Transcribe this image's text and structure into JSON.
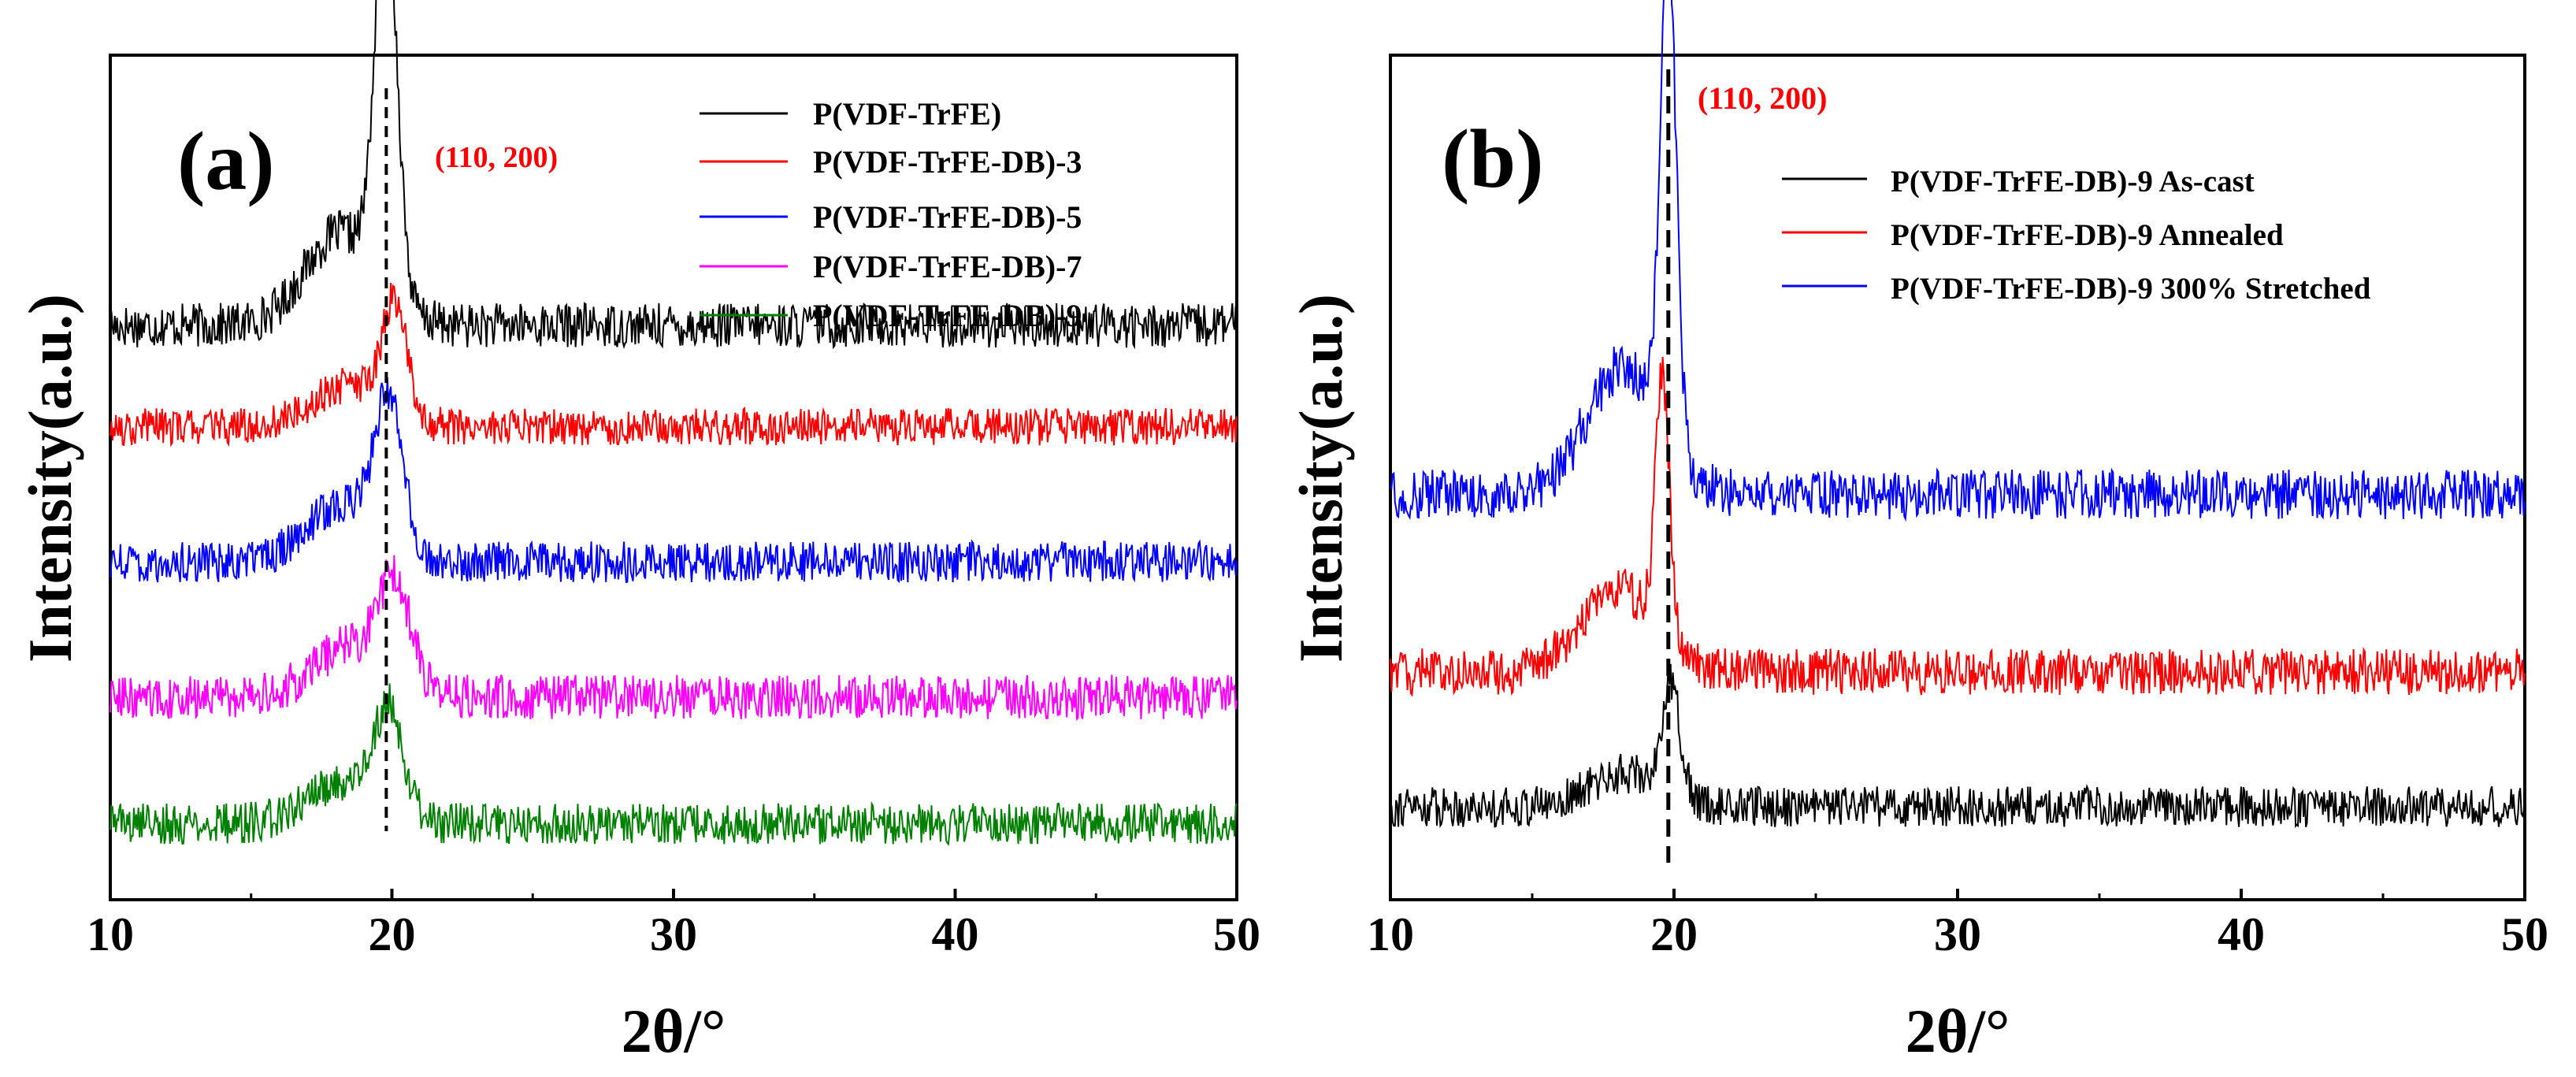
{
  "chart_data": [
    {
      "type": "line",
      "panel_label": "(a)",
      "xlabel": "2θ/°",
      "ylabel": "Intensity(a.u.)",
      "xlim": [
        10,
        50
      ],
      "xticks": [
        10,
        20,
        30,
        40,
        50
      ],
      "yticks": [],
      "peak_annotation": {
        "text": "(110, 200)",
        "x": 19.8,
        "color": "#ff0000"
      },
      "legend_position": "top-right",
      "series": [
        {
          "name": "P(VDF-TrFE)",
          "color": "#000000",
          "baseline": 0.68,
          "peak_height": 0.46,
          "peak_center": 19.8,
          "peak_width": 0.55,
          "shoulder": 0.11,
          "noise": 0.024
        },
        {
          "name": "P(VDF-TrFE-DB)-3",
          "color": "#ff0000",
          "baseline": 0.56,
          "peak_height": 0.13,
          "peak_center": 20.1,
          "peak_width": 0.6,
          "shoulder": 0.05,
          "noise": 0.02
        },
        {
          "name": "P(VDF-TrFE-DB)-5",
          "color": "#0000ff",
          "baseline": 0.4,
          "peak_height": 0.17,
          "peak_center": 19.9,
          "peak_width": 0.7,
          "shoulder": 0.07,
          "noise": 0.022
        },
        {
          "name": "P(VDF-TrFE-DB)-7",
          "color": "#ff00ff",
          "baseline": 0.24,
          "peak_height": 0.12,
          "peak_center": 20.1,
          "peak_width": 0.8,
          "shoulder": 0.06,
          "noise": 0.024
        },
        {
          "name": "P(VDF-TrFE-DB)-9",
          "color": "#008000",
          "baseline": 0.09,
          "peak_height": 0.12,
          "peak_center": 19.9,
          "peak_width": 0.7,
          "shoulder": 0.05,
          "noise": 0.022
        }
      ]
    },
    {
      "type": "line",
      "panel_label": "(b)",
      "xlabel": "2θ/°",
      "ylabel": "Intensity(a.u.)",
      "xlim": [
        10,
        50
      ],
      "xticks": [
        10,
        20,
        30,
        40,
        50
      ],
      "yticks": [],
      "peak_annotation": {
        "text": "(110, 200)",
        "x": 19.8,
        "color": "#ff0000"
      },
      "legend_position": "top-right",
      "series": [
        {
          "name": "P(VDF-TrFE-DB)-9 As-cast",
          "color": "#000000",
          "baseline": 0.11,
          "peak_height": 0.13,
          "peak_center": 19.9,
          "peak_width": 0.45,
          "shoulder": 0.04,
          "noise": 0.022
        },
        {
          "name": "P(VDF-TrFE-DB)-9 Annealed",
          "color": "#ff0000",
          "baseline": 0.27,
          "peak_height": 0.31,
          "peak_center": 19.6,
          "peak_width": 0.35,
          "shoulder": 0.1,
          "noise": 0.025
        },
        {
          "name": "P(VDF-TrFE-DB)-9 300% Stretched",
          "color": "#0000ff",
          "baseline": 0.48,
          "peak_height": 0.58,
          "peak_center": 19.8,
          "peak_width": 0.4,
          "shoulder": 0.15,
          "noise": 0.027
        }
      ]
    }
  ]
}
